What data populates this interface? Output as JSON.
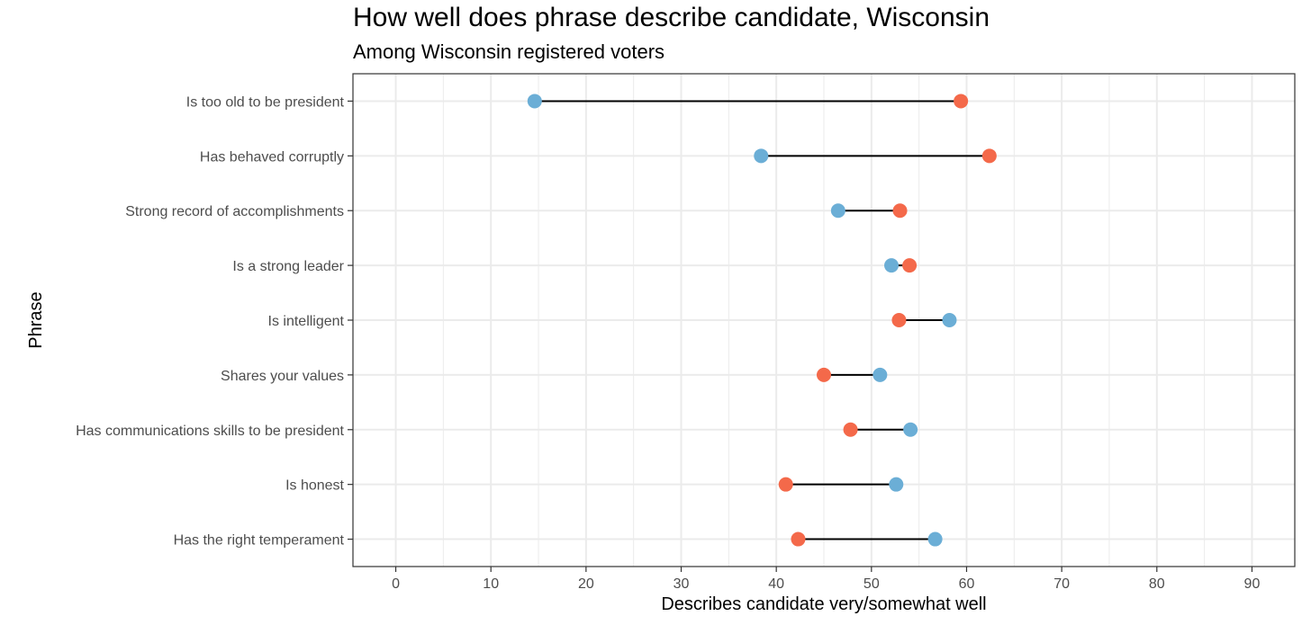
{
  "chart_data": {
    "type": "dumbbell",
    "title": "How well does phrase describe candidate, Wisconsin",
    "subtitle": "Among Wisconsin registered voters",
    "xlabel": "Describes candidate very/somewhat well",
    "ylabel": "Phrase",
    "xlim": [
      -4.5,
      94.5
    ],
    "xticks": [
      0,
      10,
      20,
      30,
      40,
      50,
      60,
      70,
      80,
      90
    ],
    "grid": true,
    "legend": "none",
    "categories": [
      "Is too old to be president",
      "Has behaved corruptly",
      "Strong record of accomplishments",
      "Is a strong leader",
      "Is intelligent",
      "Shares your values",
      "Has communications skills to be president",
      "Is honest",
      "Has the right temperament"
    ],
    "series": [
      {
        "color": "#6baed6",
        "values": [
          14.6,
          38.4,
          46.5,
          52.1,
          58.2,
          50.9,
          54.1,
          52.6,
          56.7
        ]
      },
      {
        "color": "#f4694a",
        "values": [
          59.4,
          62.4,
          53.0,
          54.0,
          52.9,
          45.0,
          47.8,
          41.0,
          42.3
        ]
      }
    ],
    "colors": {
      "connector": "#000000",
      "grid": "#ebebeb",
      "panel_border": "#333333"
    }
  }
}
